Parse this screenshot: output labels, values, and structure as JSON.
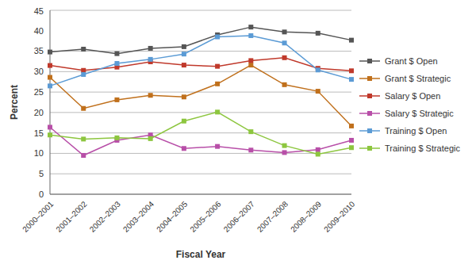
{
  "chart_data": {
    "type": "line",
    "x_label": "Fiscal Year",
    "y_label": "Percent",
    "categories": [
      "2000–2001",
      "2001–2002",
      "2002–2003",
      "2003–2004",
      "2004–2005",
      "2005–2006",
      "2006–2007",
      "2007–2008",
      "2008–2009",
      "2009–2010"
    ],
    "ylim": [
      0,
      45
    ],
    "yticks": [
      0,
      5,
      10,
      15,
      20,
      25,
      30,
      35,
      40,
      45
    ],
    "grid": true,
    "legend": "right",
    "marker": "square",
    "series": [
      {
        "name": "Grant $ Open",
        "color": "#555555",
        "values": [
          34.8,
          35.5,
          34.4,
          35.7,
          36.1,
          39.0,
          40.9,
          39.7,
          39.4,
          37.7
        ]
      },
      {
        "name": "Grant $ Strategic",
        "color": "#c0701c",
        "values": [
          28.6,
          21.0,
          23.1,
          24.2,
          23.8,
          27.0,
          31.6,
          26.8,
          25.2,
          16.7
        ]
      },
      {
        "name": "Salary $ Open",
        "color": "#c0392b",
        "values": [
          31.5,
          30.3,
          31.1,
          32.4,
          31.6,
          31.3,
          32.7,
          33.4,
          30.8,
          30.2
        ]
      },
      {
        "name": "Salary $ Strategic",
        "color": "#b84fa8",
        "values": [
          16.4,
          9.5,
          13.2,
          14.5,
          11.2,
          11.7,
          10.8,
          10.2,
          10.9,
          13.2
        ]
      },
      {
        "name": "Training $ Open",
        "color": "#5b9bd5",
        "values": [
          26.5,
          29.3,
          32.0,
          33.0,
          34.3,
          38.5,
          38.8,
          37.0,
          30.4,
          28.1
        ]
      },
      {
        "name": "Training $ Strategic",
        "color": "#8dc63f",
        "values": [
          14.5,
          13.5,
          13.8,
          13.6,
          17.9,
          20.1,
          15.3,
          11.9,
          9.8,
          11.4
        ]
      }
    ]
  }
}
